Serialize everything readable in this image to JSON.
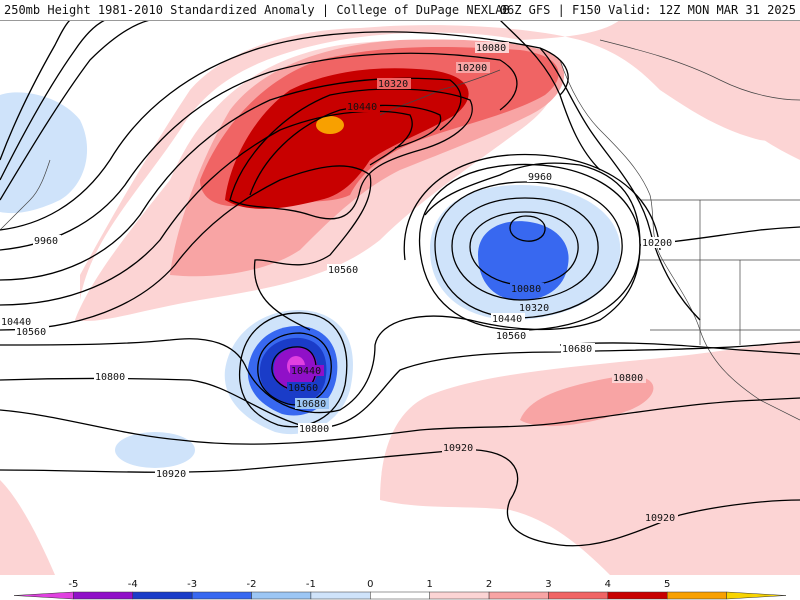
{
  "header": {
    "left": "250mb Height 1981-2010 Standardized Anomaly | College of DuPage NEXLAB",
    "right": "06Z GFS | F150 Valid: 12Z MON MAR 31 2025"
  },
  "contour_labels": [
    {
      "key": "c10080a",
      "text": "10080"
    },
    {
      "key": "c10200a",
      "text": "10200"
    },
    {
      "key": "c10320a",
      "text": "10320"
    },
    {
      "key": "c10440a",
      "text": "10440"
    },
    {
      "key": "c9960a",
      "text": "9960"
    },
    {
      "key": "c9960b",
      "text": "9960"
    },
    {
      "key": "c10200b",
      "text": "10200"
    },
    {
      "key": "c10560a",
      "text": "10560"
    },
    {
      "key": "c10080b",
      "text": "10080"
    },
    {
      "key": "c10320b",
      "text": "10320"
    },
    {
      "key": "c10440b",
      "text": "10440"
    },
    {
      "key": "c10560b",
      "text": "10560"
    },
    {
      "key": "c10440c",
      "text": "10440"
    },
    {
      "key": "c10560c",
      "text": "10560"
    },
    {
      "key": "c10680a",
      "text": "10680"
    },
    {
      "key": "c10800a",
      "text": "10800"
    },
    {
      "key": "c10440d",
      "text": "10440"
    },
    {
      "key": "c10560d",
      "text": "10560"
    },
    {
      "key": "c10680b",
      "text": "10680"
    },
    {
      "key": "c10800b",
      "text": "10800"
    },
    {
      "key": "c10800c",
      "text": "10800"
    },
    {
      "key": "c10920a",
      "text": "10920"
    },
    {
      "key": "c10920b",
      "text": "10920"
    },
    {
      "key": "c10920c",
      "text": "10920"
    }
  ],
  "colorbar": {
    "ticks": [
      "-5",
      "-4",
      "-3",
      "-2",
      "-1",
      "0",
      "1",
      "2",
      "3",
      "4",
      "5"
    ],
    "colors": [
      "#e040e0",
      "#9010c8",
      "#1a3cc8",
      "#3868f0",
      "#9cc6f4",
      "#cfe3fa",
      "#ffffff",
      "#fcd4d4",
      "#f8a4a4",
      "#f06464",
      "#c80000",
      "#f8a000",
      "#f8d400"
    ]
  }
}
